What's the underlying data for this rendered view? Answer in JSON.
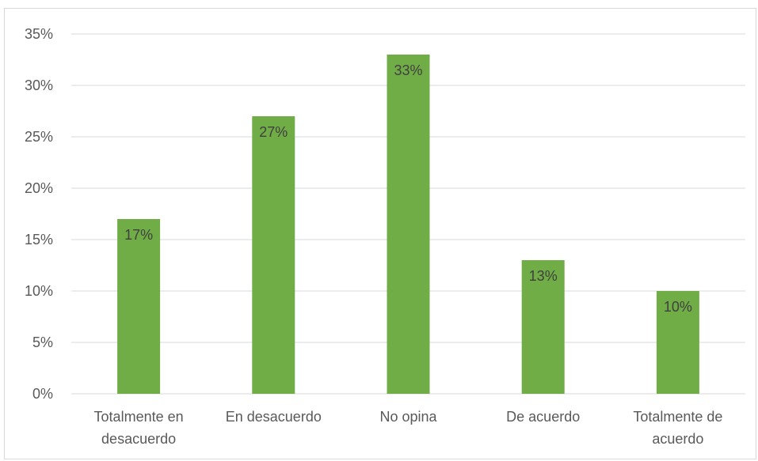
{
  "chart_data": {
    "type": "bar",
    "title": "",
    "xlabel": "",
    "ylabel": "",
    "categories": [
      [
        "Totalmente en",
        "desacuerdo"
      ],
      [
        "En desacuerdo"
      ],
      [
        "No opina"
      ],
      [
        "De acuerdo"
      ],
      [
        "Totalmente de",
        "acuerdo"
      ]
    ],
    "values": [
      0.17,
      0.27,
      0.33,
      0.13,
      0.1
    ],
    "data_labels": [
      "17%",
      "27%",
      "33%",
      "13%",
      "10%"
    ],
    "ylim": [
      0,
      0.35
    ],
    "yticks": [
      0,
      0.05,
      0.1,
      0.15,
      0.2,
      0.25,
      0.3,
      0.35
    ],
    "ytick_labels": [
      "0%",
      "5%",
      "10%",
      "15%",
      "20%",
      "25%",
      "30%",
      "35%"
    ],
    "grid": true,
    "legend": "none",
    "colors": {
      "bar": "#70ad47",
      "grid": "#d9d9d9",
      "axis_text": "#595959",
      "label_text": "#404040"
    }
  }
}
